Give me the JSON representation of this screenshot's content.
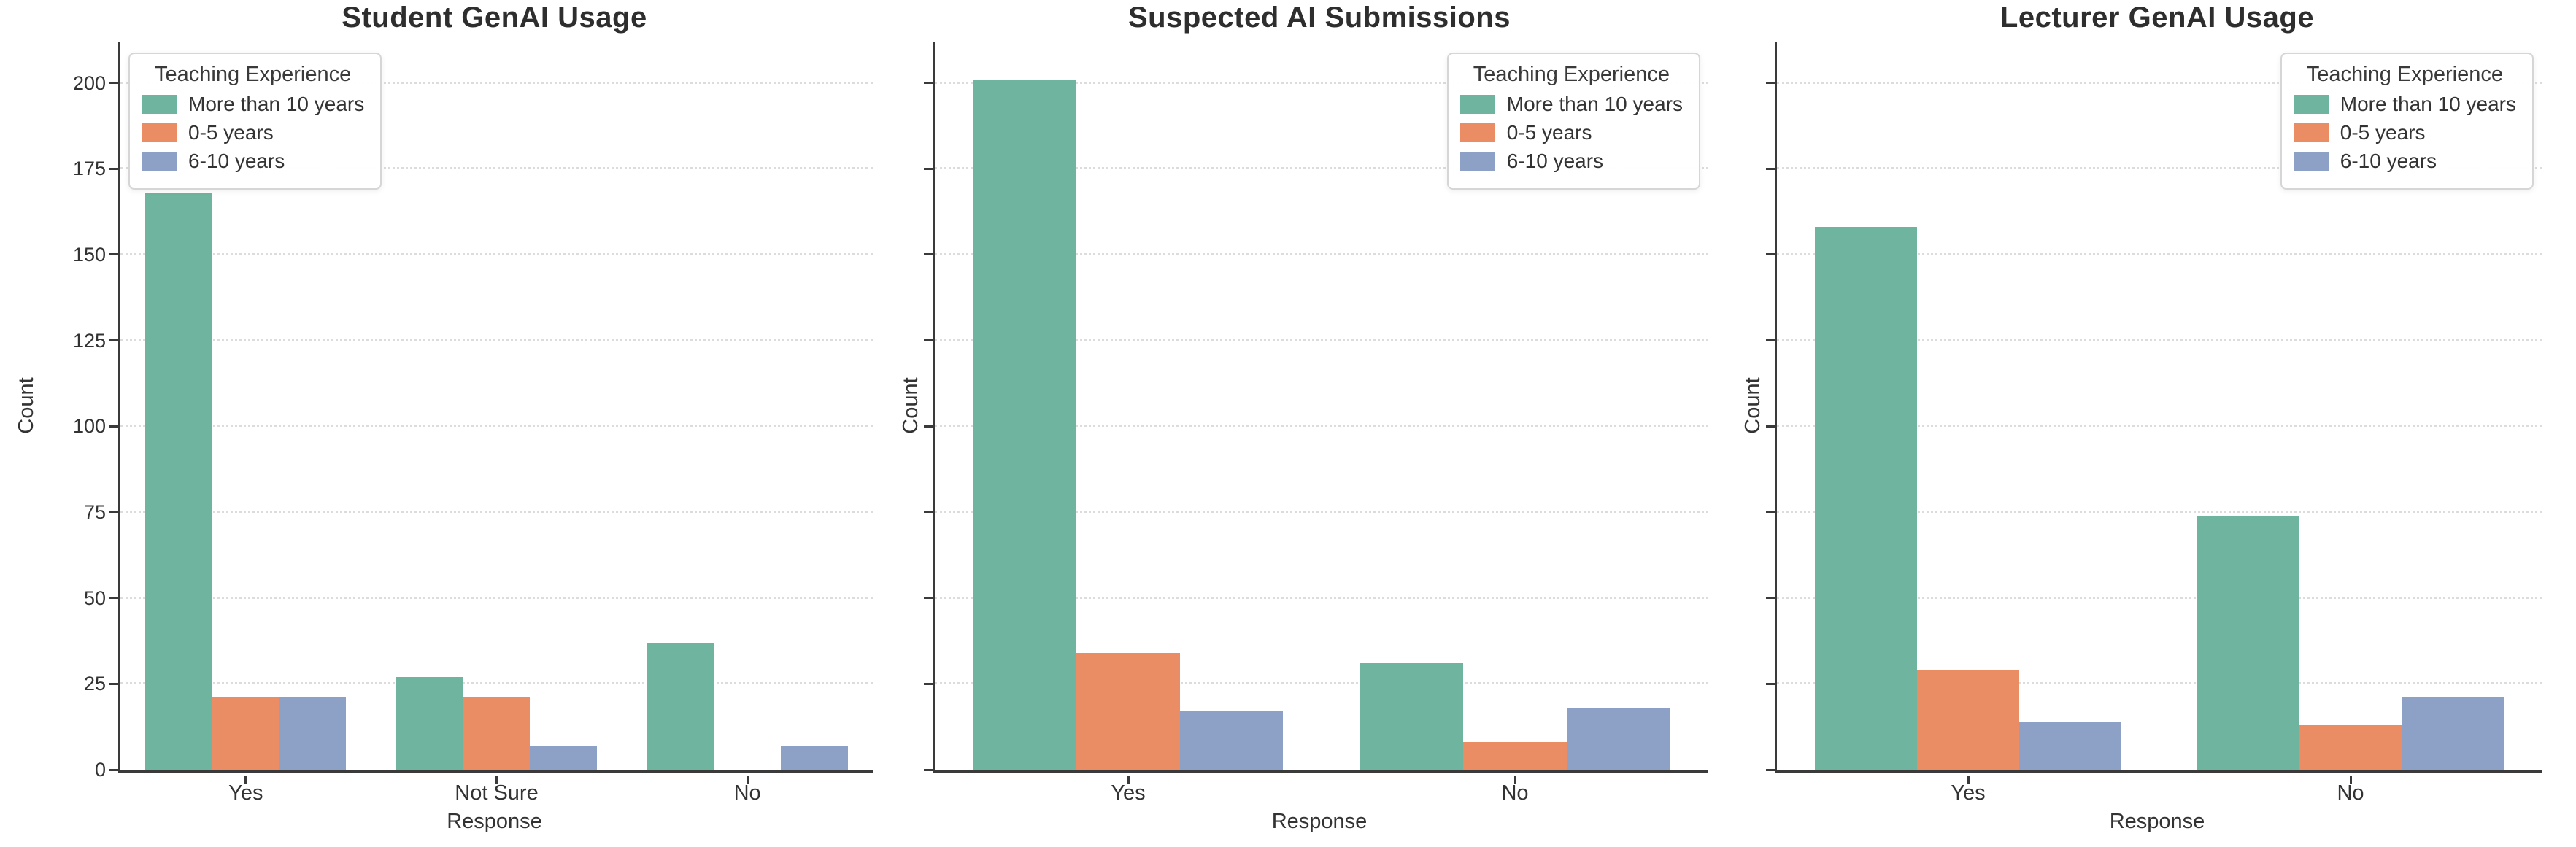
{
  "figure": {
    "background": "#ffffff",
    "text_color": "#333333",
    "spine_color": "#3a3a3a",
    "gridline_color": "#dcdcdc"
  },
  "chart_data": [
    {
      "type": "bar",
      "title": "Student GenAI Usage",
      "xlabel": "Response",
      "ylabel": "Count",
      "categories": [
        "Yes",
        "Not Sure",
        "No"
      ],
      "series": [
        {
          "name": "More than 10 years",
          "color": "#6fb49e",
          "values": [
            168,
            27,
            37
          ]
        },
        {
          "name": "0-5 years",
          "color": "#ea8c64",
          "values": [
            21,
            21,
            0
          ]
        },
        {
          "name": "6-10 years",
          "color": "#8da0c6",
          "values": [
            21,
            7,
            7
          ]
        }
      ],
      "ylim": [
        0,
        212
      ],
      "yticks": [
        0,
        25,
        50,
        75,
        100,
        125,
        150,
        175,
        200
      ],
      "show_ytick_labels": true,
      "grid": true,
      "legend": {
        "title": "Teaching Experience",
        "position": "upper left"
      }
    },
    {
      "type": "bar",
      "title": "Suspected AI Submissions",
      "xlabel": "Response",
      "ylabel": "Count",
      "categories": [
        "Yes",
        "No"
      ],
      "series": [
        {
          "name": "More than 10 years",
          "color": "#6fb49e",
          "values": [
            201,
            31
          ]
        },
        {
          "name": "0-5 years",
          "color": "#ea8c64",
          "values": [
            34,
            8
          ]
        },
        {
          "name": "6-10 years",
          "color": "#8da0c6",
          "values": [
            17,
            18
          ]
        }
      ],
      "ylim": [
        0,
        212
      ],
      "yticks": [
        0,
        25,
        50,
        75,
        100,
        125,
        150,
        175,
        200
      ],
      "show_ytick_labels": false,
      "grid": true,
      "legend": {
        "title": "Teaching Experience",
        "position": "upper right"
      }
    },
    {
      "type": "bar",
      "title": "Lecturer GenAI Usage",
      "xlabel": "Response",
      "ylabel": "Count",
      "categories": [
        "Yes",
        "No"
      ],
      "series": [
        {
          "name": "More than 10 years",
          "color": "#6fb49e",
          "values": [
            158,
            74
          ]
        },
        {
          "name": "0-5 years",
          "color": "#ea8c64",
          "values": [
            29,
            13
          ]
        },
        {
          "name": "6-10 years",
          "color": "#8da0c6",
          "values": [
            14,
            21
          ]
        }
      ],
      "ylim": [
        0,
        212
      ],
      "yticks": [
        0,
        25,
        50,
        75,
        100,
        125,
        150,
        175,
        200
      ],
      "show_ytick_labels": false,
      "grid": true,
      "legend": {
        "title": "Teaching Experience",
        "position": "upper right"
      }
    }
  ]
}
